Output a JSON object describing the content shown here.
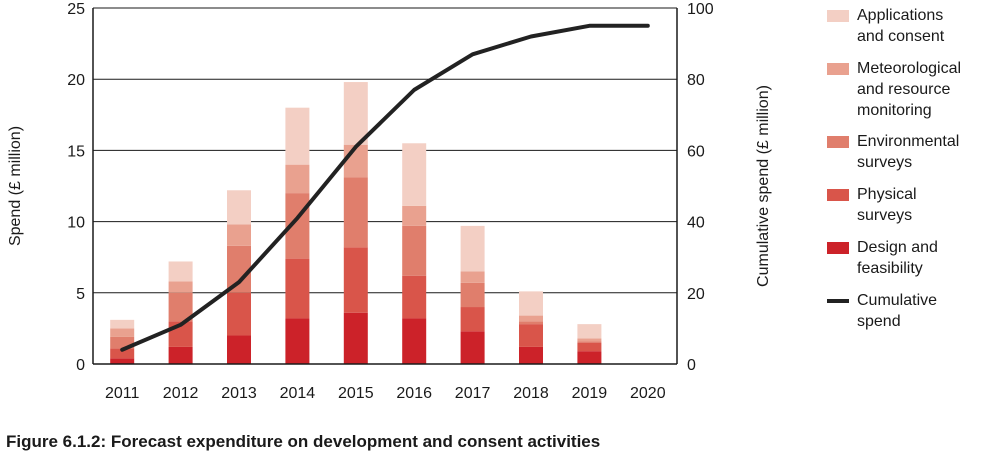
{
  "chart_data": {
    "type": "bar",
    "stacked": true,
    "title": "Figure 6.1.2: Forecast expenditure on development and consent activities",
    "ylabel": "Spend (£ million)",
    "y2label": "Cumulative spend (£ million)",
    "ylim": [
      0,
      25
    ],
    "y2lim": [
      0,
      100
    ],
    "yticks": [
      0,
      5,
      10,
      15,
      20,
      25
    ],
    "y2ticks": [
      0,
      20,
      40,
      60,
      80,
      100
    ],
    "grid": "horizontal",
    "legend_position": "right",
    "categories": [
      "2011",
      "2012",
      "2013",
      "2014",
      "2015",
      "2016",
      "2017",
      "2018",
      "2019",
      "2020"
    ],
    "series": [
      {
        "name": "Design and feasibility",
        "color": "#cc2229",
        "values": [
          0.4,
          1.2,
          2.0,
          3.2,
          3.6,
          3.2,
          2.3,
          1.2,
          0.9,
          0
        ]
      },
      {
        "name": "Physical surveys",
        "color": "#d9554a",
        "values": [
          0.7,
          1.8,
          3.0,
          4.2,
          4.6,
          3.0,
          1.7,
          1.6,
          0.6,
          0
        ]
      },
      {
        "name": "Environmental surveys",
        "color": "#e07e6c",
        "values": [
          0.8,
          2.0,
          3.3,
          4.6,
          4.9,
          3.5,
          1.7,
          0.2,
          0.1,
          0
        ]
      },
      {
        "name": "Meteorological and resource monitoring",
        "color": "#e9a18f",
        "values": [
          0.6,
          0.8,
          1.5,
          2.0,
          2.3,
          1.4,
          0.8,
          0.4,
          0.2,
          0
        ]
      },
      {
        "name": "Applications and consent",
        "color": "#f3cfc4",
        "values": [
          0.6,
          1.4,
          2.4,
          4.0,
          4.4,
          4.4,
          3.2,
          1.7,
          1.0,
          0
        ]
      }
    ],
    "line": {
      "name": "Cumulative spend",
      "axis": "right",
      "color": "#222222",
      "values": [
        4,
        11,
        23,
        41,
        61,
        77,
        87,
        92,
        95,
        95
      ]
    },
    "legend": [
      {
        "lines": [
          "Applications",
          "and consent"
        ],
        "color": "#f3cfc4",
        "kind": "bar"
      },
      {
        "lines": [
          "Meteorological",
          "and resource",
          "monitoring"
        ],
        "color": "#e9a18f",
        "kind": "bar"
      },
      {
        "lines": [
          "Environmental",
          "surveys"
        ],
        "color": "#e07e6c",
        "kind": "bar"
      },
      {
        "lines": [
          "Physical",
          "surveys"
        ],
        "color": "#d9554a",
        "kind": "bar"
      },
      {
        "lines": [
          "Design and",
          "feasibility"
        ],
        "color": "#cc2229",
        "kind": "bar"
      },
      {
        "lines": [
          "Cumulative",
          "spend"
        ],
        "color": "#222222",
        "kind": "line"
      }
    ]
  }
}
